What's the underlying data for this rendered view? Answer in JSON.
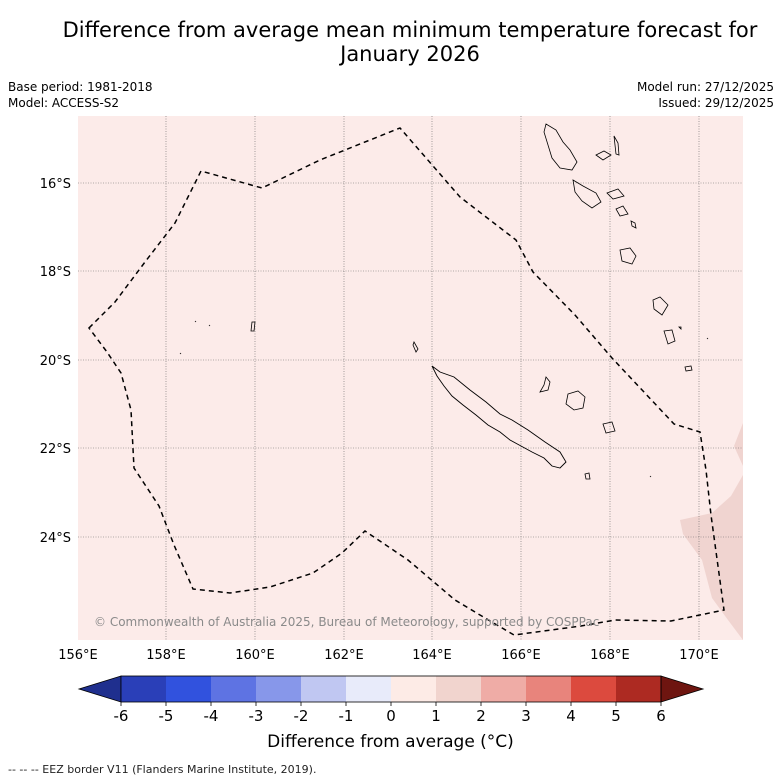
{
  "title_line1": "Difference from average mean minimum temperature forecast for",
  "title_line2": "January 2026",
  "base_period": "Base period: 1981-2018",
  "model": "Model: ACCESS-S2",
  "model_run": "Model run: 27/12/2025",
  "issued": "Issued: 29/12/2025",
  "copyright": "© Commonwealth of Australia 2025, Bureau of Meteorology, supported by COSPPac",
  "lat_labels": [
    "16°S",
    "18°S",
    "20°S",
    "22°S",
    "24°S"
  ],
  "lon_labels": [
    "156°E",
    "158°E",
    "160°E",
    "162°E",
    "164°E",
    "166°E",
    "168°E",
    "170°E"
  ],
  "colorbar": {
    "labels": [
      "-6",
      "-5",
      "-4",
      "-3",
      "-2",
      "-1",
      "0",
      "1",
      "2",
      "3",
      "4",
      "5",
      "6"
    ],
    "colors": [
      "#1f2f8e",
      "#2a3fb8",
      "#3152de",
      "#5e73e3",
      "#8797ea",
      "#c0c7f2",
      "#e8ebfa",
      "#fdebe6",
      "#f1d4ce",
      "#efaca6",
      "#e8847c",
      "#dc4a3e",
      "#ad2a22",
      "#6e1510"
    ],
    "title": "Difference from average (°C)"
  },
  "map_colors": {
    "background": "#fcebe9",
    "warm_patch": "#f0d4d0",
    "grid": "#666666"
  },
  "eez_note": "-- -- -- EEZ border V11 (Flanders Marine Institute, 2019)."
}
